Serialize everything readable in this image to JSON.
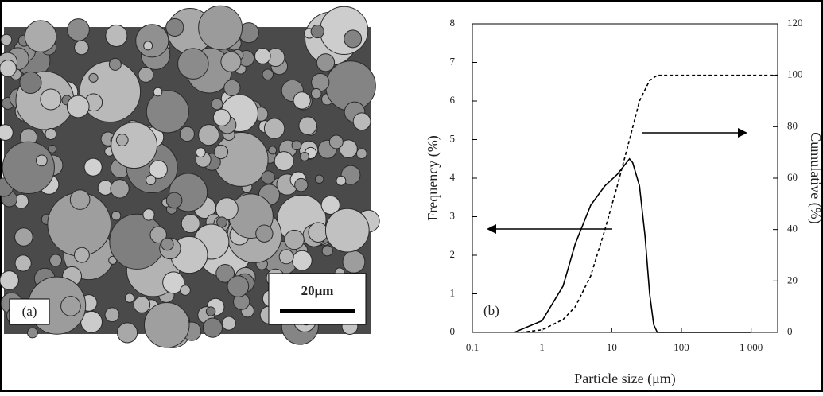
{
  "panel_a": {
    "label": "(a)",
    "scale_bar": "20μm"
  },
  "chart_data": {
    "type": "line",
    "label": "(b)",
    "x_label": "Particle size (μm)",
    "y_label": "Frequency (%)",
    "y2_label": "Cumulative (%)",
    "xscale": "log",
    "xlim": [
      0.1,
      2400
    ],
    "ylim": [
      0,
      8
    ],
    "y2lim": [
      0,
      120
    ],
    "xticks": [
      0.1,
      1,
      10,
      100,
      {
        "value": 1000,
        "label": "1 000"
      }
    ],
    "yticks": [
      0,
      1,
      2,
      3,
      4,
      5,
      6,
      7,
      8
    ],
    "y2ticks": [
      0,
      20,
      40,
      60,
      80,
      100,
      120
    ],
    "series": [
      {
        "name": "Frequency",
        "color": "#000000",
        "linestyle": "solid",
        "axis": "y",
        "x": [
          0.4,
          1,
          2,
          3,
          5,
          8,
          12,
          18,
          20,
          25,
          30,
          35,
          40,
          45,
          1000
        ],
        "values": [
          0,
          0.3,
          1.2,
          2.3,
          3.3,
          3.8,
          4.1,
          4.5,
          4.4,
          3.8,
          2.5,
          1.0,
          0.2,
          0,
          0
        ]
      },
      {
        "name": "Cumulative",
        "color": "#000000",
        "linestyle": "dashed",
        "axis": "y2",
        "x": [
          0.5,
          1,
          2,
          3,
          5,
          8,
          12,
          18,
          25,
          35,
          45,
          1000,
          2400
        ],
        "values": [
          0,
          1,
          5,
          10,
          22,
          40,
          57,
          75,
          90,
          98,
          100,
          100,
          100
        ]
      }
    ]
  }
}
